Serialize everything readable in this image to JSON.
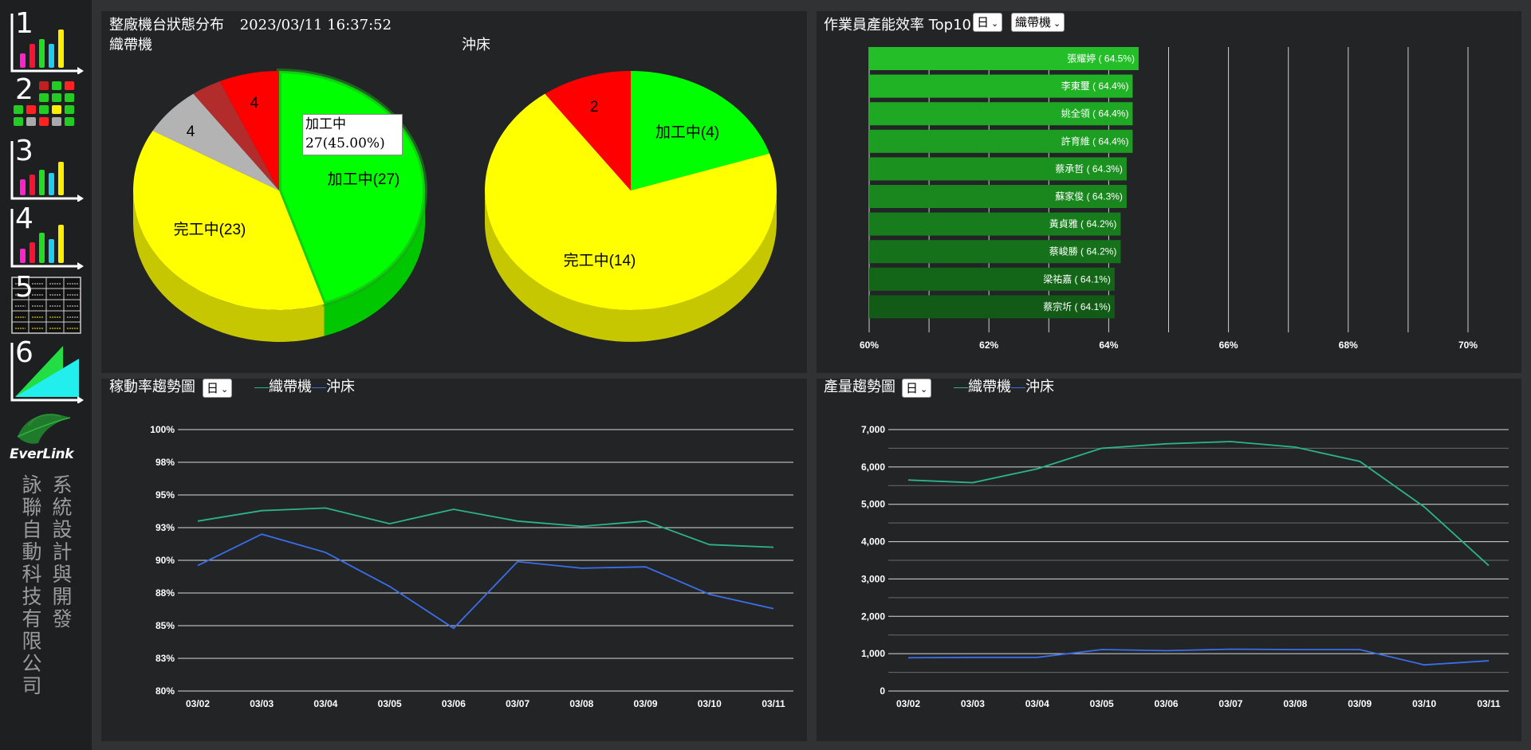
{
  "nav": {
    "items": [
      {
        "num": "1",
        "icon": "bar-chart-icon"
      },
      {
        "num": "2",
        "icon": "machine-grid-icon"
      },
      {
        "num": "3",
        "icon": "bar-chart-icon"
      },
      {
        "num": "4",
        "icon": "bar-chart-icon"
      },
      {
        "num": "5",
        "icon": "table-icon"
      },
      {
        "num": "6",
        "icon": "area-chart-icon"
      }
    ],
    "brand": "EverLink",
    "company_col1": "詠聯自動科技有限公司",
    "company_col2": "系統設計與開發"
  },
  "status_panel": {
    "title": "整廠機台狀態分布",
    "datetime": "2023/03/11 16:37:52",
    "tooltip_line1": "加工中",
    "tooltip_line2": "27(45.00%)"
  },
  "efficiency_panel": {
    "title": "作業員產能效率 Top10",
    "period_select": "日",
    "machine_select": "織帶機"
  },
  "utilization_panel": {
    "title": "稼動率趨勢圖",
    "period_select": "日",
    "legend": [
      "織帶機",
      "沖床"
    ]
  },
  "output_panel": {
    "title": "產量趨勢圖",
    "period_select": "日",
    "legend": [
      "織帶機",
      "沖床"
    ]
  },
  "colors": {
    "processing": "#00ff00",
    "finished": "#ffff00",
    "idle": "#b3b3b3",
    "alarm": "#ff0000",
    "alarm_dark": "#b22c2c",
    "series_weaving": "#2bb48c",
    "series_press": "#3a6ee8"
  },
  "chart_data": [
    {
      "type": "pie",
      "title": "織帶機",
      "slices": [
        {
          "label": "加工中",
          "value": 27,
          "display": "加工中(27)",
          "color": "#00ff00"
        },
        {
          "label": "完工中",
          "value": 23,
          "display": "完工中(23)",
          "color": "#ffff00"
        },
        {
          "label": "",
          "value": 4,
          "display": "4",
          "color": "#b3b3b3"
        },
        {
          "label": "",
          "value": 2,
          "display": "",
          "color": "#b22c2c"
        },
        {
          "label": "",
          "value": 4,
          "display": "4",
          "color": "#ff0000"
        }
      ]
    },
    {
      "type": "pie",
      "title": "沖床",
      "slices": [
        {
          "label": "加工中",
          "value": 4,
          "display": "加工中(4)",
          "color": "#00ff00"
        },
        {
          "label": "完工中",
          "value": 14,
          "display": "完工中(14)",
          "color": "#ffff00"
        },
        {
          "label": "",
          "value": 2,
          "display": "2",
          "color": "#ff0000"
        }
      ]
    },
    {
      "type": "bar",
      "orientation": "horizontal",
      "categories": [
        "張耀婷 ( 64.5%)",
        "李東璽 ( 64.4%)",
        "姚全領 ( 64.4%)",
        "許育維 ( 64.4%)",
        "蔡承哲 ( 64.3%)",
        "蘇家俊 ( 64.3%)",
        "黃貞雅 ( 64.2%)",
        "蔡峻勝 ( 64.2%)",
        "梁祐嘉 ( 64.1%)",
        "蔡宗圻 ( 64.1%)"
      ],
      "values": [
        64.5,
        64.4,
        64.4,
        64.4,
        64.3,
        64.3,
        64.2,
        64.2,
        64.1,
        64.1
      ],
      "xlim": [
        60,
        70
      ],
      "ticks": [
        "60%",
        "62%",
        "64%",
        "66%",
        "68%",
        "70%"
      ]
    },
    {
      "type": "line",
      "categories": [
        "03/02",
        "03/03",
        "03/04",
        "03/05",
        "03/06",
        "03/07",
        "03/08",
        "03/09",
        "03/10",
        "03/11"
      ],
      "series": [
        {
          "name": "織帶機",
          "values": [
            93.0,
            93.8,
            94.0,
            92.8,
            93.9,
            93.0,
            92.6,
            93.0,
            91.2,
            91.0
          ],
          "color": "#2bb48c"
        },
        {
          "name": "沖床",
          "values": [
            89.6,
            92.0,
            90.6,
            88.0,
            84.8,
            89.9,
            89.4,
            89.5,
            87.4,
            86.3
          ],
          "color": "#3a6ee8"
        }
      ],
      "ylim": [
        80,
        100
      ],
      "yticks": [
        "80%",
        "83%",
        "85%",
        "88%",
        "90%",
        "93%",
        "95%",
        "98%",
        "100%"
      ]
    },
    {
      "type": "line",
      "categories": [
        "03/02",
        "03/03",
        "03/04",
        "03/05",
        "03/06",
        "03/07",
        "03/08",
        "03/09",
        "03/10",
        "03/11"
      ],
      "series": [
        {
          "name": "織帶機",
          "values": [
            5650,
            5580,
            5950,
            6500,
            6620,
            6680,
            6530,
            6150,
            4930,
            3360
          ],
          "color": "#2bb48c"
        },
        {
          "name": "沖床",
          "values": [
            890,
            900,
            900,
            1110,
            1080,
            1120,
            1110,
            1110,
            700,
            810
          ],
          "color": "#3a6ee8"
        }
      ],
      "ylim": [
        0,
        7000
      ],
      "yticks": [
        "0",
        "1,000",
        "2,000",
        "3,000",
        "4,000",
        "5,000",
        "6,000",
        "7,000"
      ]
    }
  ]
}
